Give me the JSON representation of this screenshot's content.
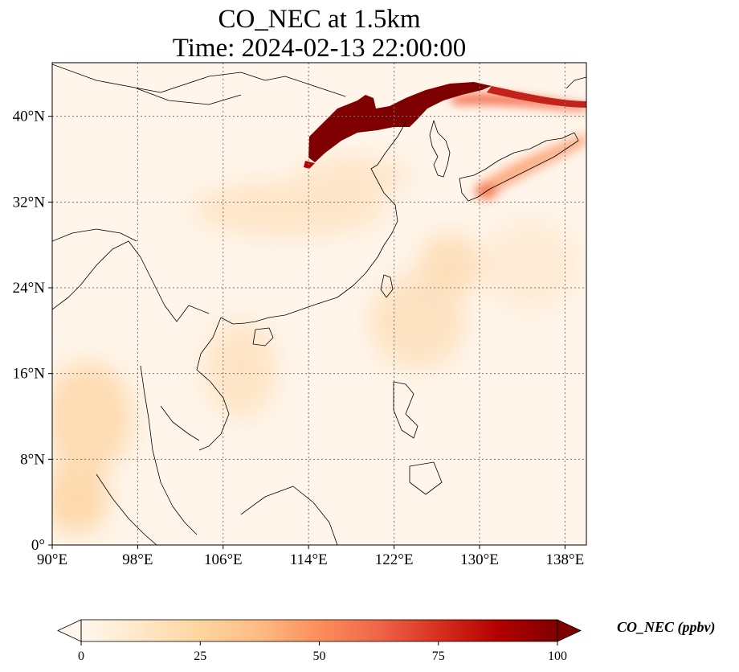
{
  "title_line1": "CO_NEC at 1.5km",
  "title_line2": "Time: 2024-02-13 22:00:00",
  "map": {
    "projection": "PlateCarree",
    "lon_range": [
      90,
      140
    ],
    "lat_range": [
      0,
      45
    ],
    "lon_ticks": [
      90,
      98,
      106,
      114,
      122,
      130,
      138
    ],
    "lat_ticks": [
      0,
      8,
      16,
      24,
      32,
      40
    ],
    "lon_tick_labels": [
      "90°E",
      "98°E",
      "106°E",
      "114°E",
      "122°E",
      "130°E",
      "138°E"
    ],
    "lat_tick_labels": [
      "0°",
      "8°N",
      "16°N",
      "24°N",
      "32°N",
      "40°N"
    ],
    "gridlines": true,
    "coastlines": true,
    "borders": true
  },
  "colorbar": {
    "label": "CO_NEC (ppbv)",
    "ticks": [
      0,
      25,
      50,
      75,
      100
    ],
    "tick_labels": [
      "0",
      "25",
      "50",
      "75",
      "100"
    ],
    "range": [
      0,
      100
    ],
    "extend": "both",
    "colormap": "OrRd",
    "colors": [
      "#fff7ec",
      "#fee8c8",
      "#fdd49e",
      "#fdbb84",
      "#fc8d59",
      "#ef6548",
      "#d7301f",
      "#b30000",
      "#7f0000"
    ]
  }
}
